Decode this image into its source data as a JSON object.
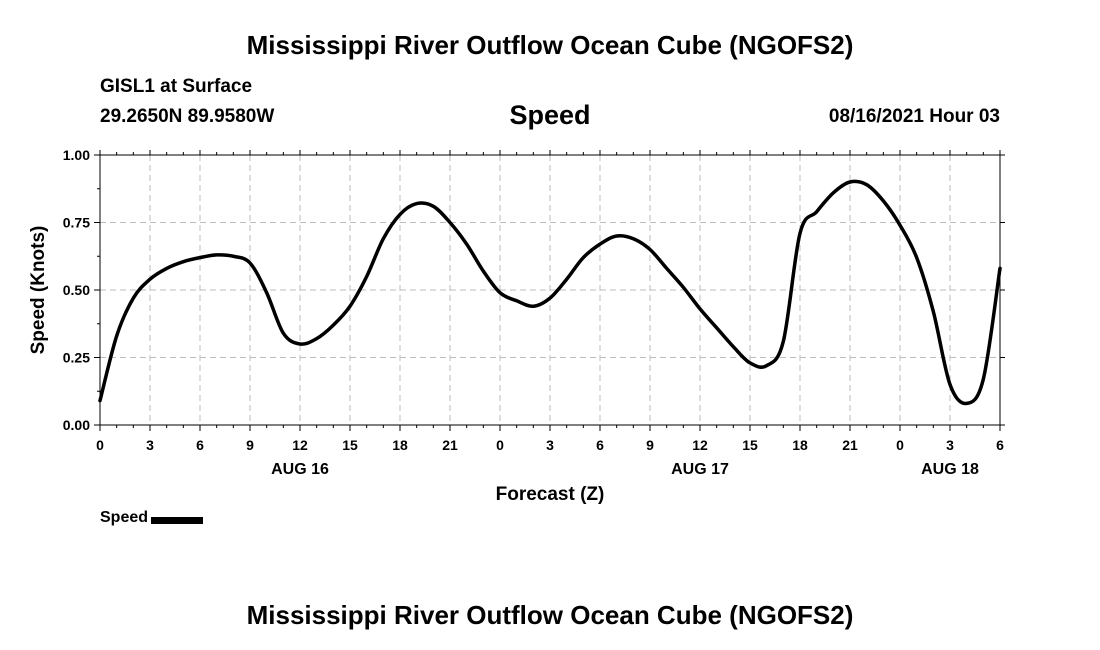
{
  "header": {
    "main_title": "Mississippi River Outflow Ocean Cube (NGOFS2)",
    "station": "GISL1 at Surface",
    "coords": "29.2650N  89.9580W",
    "chart_title": "Speed",
    "timestamp": "08/16/2021 Hour 03"
  },
  "footer": {
    "title": "Mississippi River Outflow Ocean Cube (NGOFS2)"
  },
  "legend": {
    "label": "Speed",
    "color": "#000000"
  },
  "chart_data": {
    "type": "line",
    "title": "Speed",
    "xlabel": "Forecast (Z)",
    "ylabel": "Speed (Knots)",
    "xlim": [
      0,
      54
    ],
    "ylim": [
      0,
      1.0
    ],
    "grid": true,
    "y_ticks": [
      0.0,
      0.25,
      0.5,
      0.75,
      1.0
    ],
    "y_tick_labels": [
      "0.00",
      "0.25",
      "0.50",
      "0.75",
      "1.00"
    ],
    "x_ticks": [
      0,
      3,
      6,
      9,
      12,
      15,
      18,
      21,
      24,
      27,
      30,
      33,
      36,
      39,
      42,
      45,
      48,
      51,
      54
    ],
    "x_tick_labels": [
      "0",
      "3",
      "6",
      "9",
      "12",
      "15",
      "18",
      "21",
      "0",
      "3",
      "6",
      "9",
      "12",
      "15",
      "18",
      "21",
      "0",
      "3",
      "6"
    ],
    "date_labels": [
      {
        "x": 12,
        "label": "AUG 16"
      },
      {
        "x": 36,
        "label": "AUG 17"
      },
      {
        "x": 51,
        "label": "AUG 18"
      }
    ],
    "series": [
      {
        "name": "Speed",
        "color": "#000000",
        "x": [
          0,
          1,
          2,
          3,
          4,
          5,
          6,
          7,
          8,
          9,
          10,
          11,
          12,
          13,
          14,
          15,
          16,
          17,
          18,
          19,
          20,
          21,
          22,
          23,
          24,
          25,
          26,
          27,
          28,
          29,
          30,
          31,
          32,
          33,
          34,
          35,
          36,
          37,
          38,
          39,
          40,
          41,
          42,
          43,
          44,
          45,
          46,
          47,
          48,
          49,
          50,
          51,
          52,
          53,
          54
        ],
        "values": [
          0.09,
          0.33,
          0.47,
          0.54,
          0.58,
          0.605,
          0.62,
          0.63,
          0.625,
          0.6,
          0.49,
          0.34,
          0.3,
          0.32,
          0.37,
          0.44,
          0.55,
          0.69,
          0.78,
          0.82,
          0.81,
          0.75,
          0.67,
          0.57,
          0.49,
          0.46,
          0.44,
          0.47,
          0.54,
          0.62,
          0.67,
          0.7,
          0.69,
          0.65,
          0.58,
          0.51,
          0.43,
          0.36,
          0.29,
          0.23,
          0.22,
          0.31,
          0.71,
          0.79,
          0.86,
          0.9,
          0.89,
          0.83,
          0.74,
          0.62,
          0.42,
          0.15,
          0.08,
          0.17,
          0.58
        ]
      }
    ]
  }
}
